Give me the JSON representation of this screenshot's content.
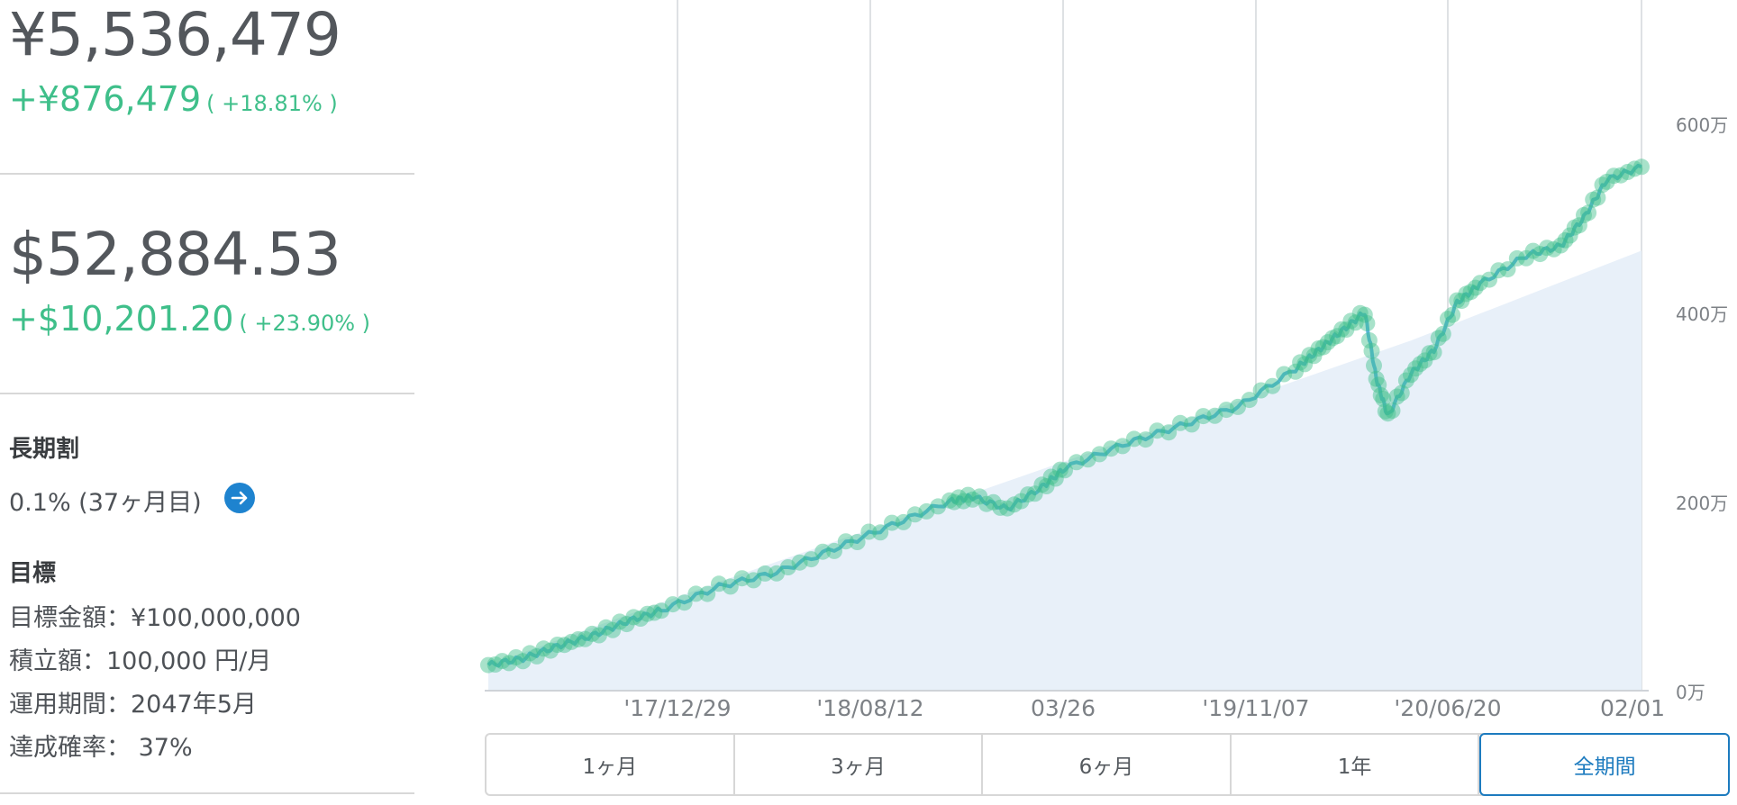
{
  "summary": {
    "jpy_total": "¥5,536,479",
    "jpy_gain": "+¥876,479",
    "jpy_gain_pct": "( +18.81% )",
    "usd_total": "$52,884.53",
    "usd_gain": "+$10,201.20",
    "usd_gain_pct": "( +23.90% )"
  },
  "discount": {
    "heading": "長期割",
    "value": "0.1% (37ヶ月目)",
    "icon": "arrow-right-icon"
  },
  "goal": {
    "heading": "目標",
    "amount": "目標金額：¥100,000,000",
    "monthly": "積立額：100,000 円/月",
    "period": "運用期間：2047年5月",
    "probability": "達成確率：  37%"
  },
  "chart_data": {
    "type": "line",
    "x_tick_labels": [
      "'17/12/29",
      "'18/08/12",
      "03/26",
      "'19/11/07",
      "'20/06/20",
      "02/01"
    ],
    "y_tick_labels": [
      "0万",
      "200万",
      "400万",
      "600万"
    ],
    "ylim": [
      0,
      7300000
    ],
    "grid": "vertical",
    "colors": {
      "valuation": "#5ab4e0",
      "principal_area": "#e8f0f9",
      "markers": "#3fbf8a"
    },
    "series": [
      {
        "role": "valuation",
        "x": [
          0,
          0.03,
          0.06,
          0.09,
          0.12,
          0.15,
          0.2,
          0.25,
          0.3,
          0.35,
          0.4,
          0.42,
          0.45,
          0.48,
          0.5,
          0.55,
          0.6,
          0.65,
          0.7,
          0.72,
          0.74,
          0.76,
          0.77,
          0.78,
          0.8,
          0.82,
          0.84,
          0.86,
          0.9,
          0.93,
          0.95,
          0.97,
          1.0
        ],
        "values": [
          270000,
          340000,
          470000,
          580000,
          730000,
          850000,
          1100000,
          1250000,
          1500000,
          1750000,
          2000000,
          2050000,
          1920000,
          2150000,
          2350000,
          2600000,
          2800000,
          3000000,
          3400000,
          3600000,
          3800000,
          4000000,
          3300000,
          2900000,
          3350000,
          3600000,
          4100000,
          4300000,
          4600000,
          4700000,
          5000000,
          5400000,
          5536479
        ]
      },
      {
        "role": "principal",
        "x": [
          0,
          0.2,
          0.4,
          0.6,
          0.8,
          1.0
        ],
        "values": [
          270000,
          1150000,
          2000000,
          2850000,
          3700000,
          4650000
        ]
      }
    ]
  },
  "tabs": [
    {
      "label": "1ヶ月",
      "active": false
    },
    {
      "label": "3ヶ月",
      "active": false
    },
    {
      "label": "6ヶ月",
      "active": false
    },
    {
      "label": "1年",
      "active": false
    },
    {
      "label": "全期間",
      "active": true
    }
  ]
}
